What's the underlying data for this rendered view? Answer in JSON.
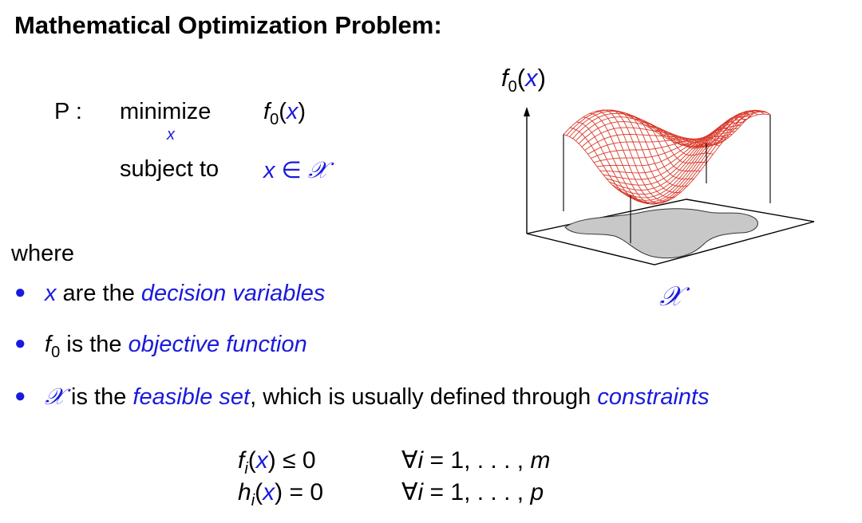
{
  "title": "Mathematical Optimization Problem:",
  "problem": {
    "label": "P :",
    "minimize_word": "minimize",
    "minimize_subscript": "x",
    "objective_f": "f",
    "objective_sub": "0",
    "objective_open": "(",
    "objective_var": "x",
    "objective_close": ")",
    "subject_word": "subject to",
    "constraint_var": "x",
    "constraint_in": " ∈ ",
    "constraint_set": "𝒳"
  },
  "where_word": "where",
  "bullets": [
    {
      "math_var": "x",
      "text_before": " are the ",
      "term": "decision variables",
      "text_after": ""
    },
    {
      "math_f": "f",
      "math_sub": "0",
      "text_before": " is the ",
      "term": "objective function",
      "text_after": ""
    },
    {
      "math_set": "𝒳",
      "text_before": " is the ",
      "term": "feasible set",
      "text_middle": ", which is usually defined through ",
      "term2": "constraints"
    }
  ],
  "equations": [
    {
      "fn": "f",
      "idx": "i",
      "open": "(",
      "var": "x",
      "close": ")",
      "rel": " ≤ 0",
      "forall": "∀",
      "ivar": "i",
      "range": " = 1, . . . , ",
      "bound": "m"
    },
    {
      "fn": "h",
      "idx": "i",
      "open": "(",
      "var": "x",
      "close": ")",
      "rel": " = 0",
      "forall": "∀",
      "ivar": "i",
      "range": " = 1, . . . , ",
      "bound": "p"
    }
  ],
  "figure": {
    "axis_f": "f",
    "axis_sub": "0",
    "axis_open": "(",
    "axis_var": "x",
    "axis_close": ")",
    "set_label": "𝒳",
    "surface_color": "#d93a2b",
    "shadow_color": "#c8c8c8"
  }
}
